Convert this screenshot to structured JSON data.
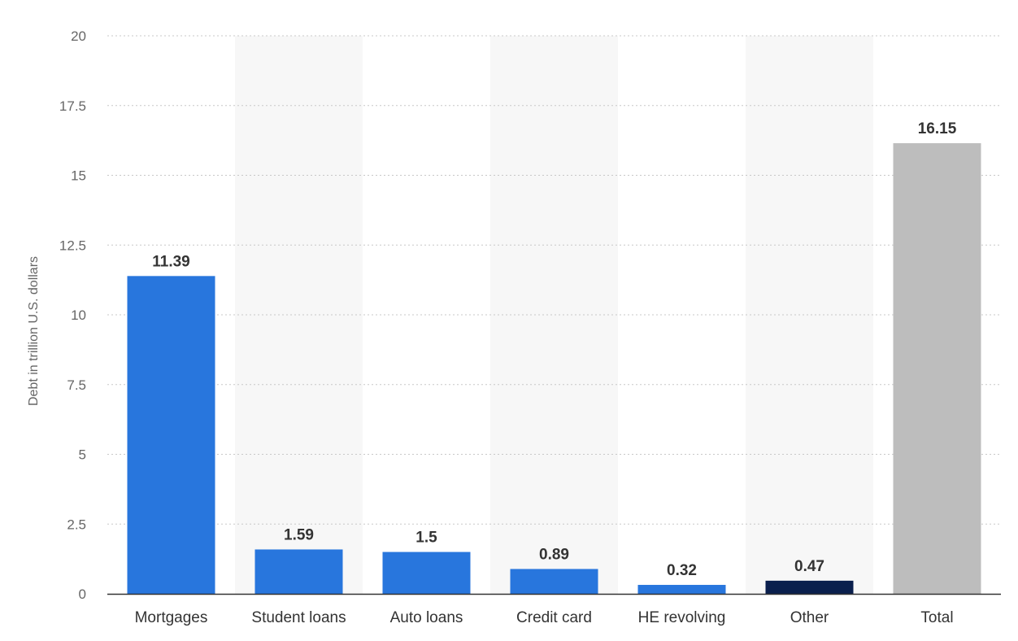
{
  "chart_data": {
    "type": "bar",
    "categories": [
      "Mortgages",
      "Student loans",
      "Auto loans",
      "Credit card",
      "HE revolving",
      "Other",
      "Total"
    ],
    "values": [
      11.39,
      1.59,
      1.5,
      0.89,
      0.32,
      0.47,
      16.15
    ],
    "value_labels": [
      "11.39",
      "1.59",
      "1.5",
      "0.89",
      "0.32",
      "0.47",
      "16.15"
    ],
    "bar_colors": [
      "#2876dd",
      "#2876dd",
      "#2876dd",
      "#2876dd",
      "#2876dd",
      "#0a1f4d",
      "#bdbdbd"
    ],
    "title": "",
    "xlabel": "",
    "ylabel": "Debt in trillion U.S. dollars",
    "ylim": [
      0,
      20
    ],
    "yticks": [
      0,
      2.5,
      5,
      7.5,
      10,
      12.5,
      15,
      17.5,
      20
    ],
    "ytick_labels": [
      "0",
      "2.5",
      "5",
      "7.5",
      "10",
      "12.5",
      "15",
      "17.5",
      "20"
    ],
    "grid": true,
    "grid_style": "dotted",
    "alternating_band_color": "#f7f7f7"
  }
}
